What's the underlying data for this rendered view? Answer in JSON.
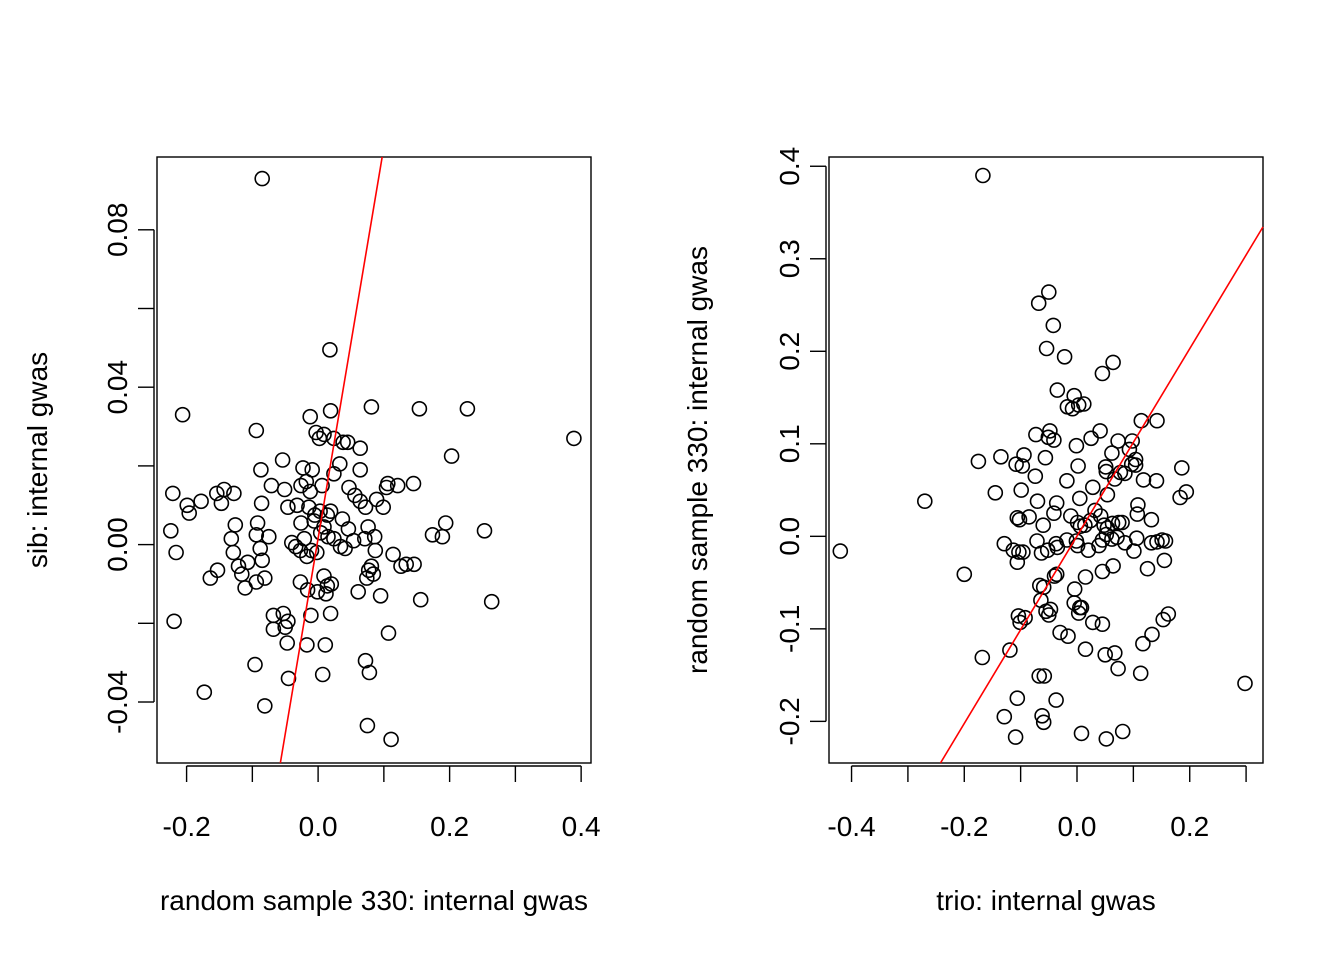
{
  "chart_data": [
    {
      "type": "scatter",
      "xlabel": "random sample 330: internal gwas",
      "ylabel": "sib: internal gwas",
      "xlim": [
        -0.245,
        0.415
      ],
      "ylim": [
        -0.0555,
        0.0985
      ],
      "xticks": [
        -0.2,
        -0.1,
        0.0,
        0.1,
        0.2,
        0.3,
        0.4
      ],
      "xtick_labels": [
        "-0.2",
        "",
        "0.0",
        "",
        "0.2",
        "",
        "0.4"
      ],
      "yticks": [
        -0.04,
        -0.02,
        0.0,
        0.02,
        0.04,
        0.06,
        0.08
      ],
      "ytick_labels": [
        "-0.04",
        "",
        "0.00",
        "",
        "0.04",
        "",
        "0.08"
      ],
      "grid": false,
      "fit_line": {
        "color": "#ff0000",
        "slope": 0.9946,
        "intercept": 0.0016
      },
      "points": [
        [
          -0.085,
          0.093
        ],
        [
          0.018,
          0.0495
        ],
        [
          0.389,
          0.027
        ],
        [
          -0.206,
          0.033
        ],
        [
          -0.094,
          0.029
        ],
        [
          0.081,
          0.035
        ],
        [
          0.154,
          0.0345
        ],
        [
          0.227,
          0.0345
        ],
        [
          0.019,
          0.034
        ],
        [
          -0.012,
          0.0325
        ],
        [
          0.009,
          0.028
        ],
        [
          -0.003,
          0.0285
        ],
        [
          0.002,
          0.027
        ],
        [
          0.024,
          0.027
        ],
        [
          0.038,
          0.026
        ],
        [
          0.045,
          0.026
        ],
        [
          0.064,
          0.0245
        ],
        [
          0.203,
          0.0225
        ],
        [
          -0.087,
          0.019
        ],
        [
          -0.054,
          0.0215
        ],
        [
          -0.023,
          0.0195
        ],
        [
          -0.009,
          0.019
        ],
        [
          0.033,
          0.0205
        ],
        [
          0.064,
          0.019
        ],
        [
          0.024,
          0.018
        ],
        [
          -0.221,
          0.013
        ],
        [
          -0.143,
          0.014
        ],
        [
          -0.128,
          0.013
        ],
        [
          -0.178,
          0.011
        ],
        [
          -0.154,
          0.013
        ],
        [
          -0.071,
          0.015
        ],
        [
          -0.051,
          0.014
        ],
        [
          -0.026,
          0.015
        ],
        [
          -0.018,
          0.016
        ],
        [
          -0.012,
          0.0135
        ],
        [
          0.006,
          0.015
        ],
        [
          0.047,
          0.0145
        ],
        [
          0.056,
          0.0125
        ],
        [
          0.064,
          0.011
        ],
        [
          0.104,
          0.0145
        ],
        [
          0.106,
          0.0155
        ],
        [
          0.121,
          0.015
        ],
        [
          0.145,
          0.0155
        ],
        [
          -0.199,
          0.01
        ],
        [
          -0.196,
          0.008
        ],
        [
          -0.147,
          0.0105
        ],
        [
          -0.086,
          0.0105
        ],
        [
          -0.046,
          0.0095
        ],
        [
          -0.032,
          0.01
        ],
        [
          -0.014,
          0.0095
        ],
        [
          -0.005,
          0.0075
        ],
        [
          0.003,
          0.0085
        ],
        [
          0.014,
          0.0075
        ],
        [
          0.019,
          0.0085
        ],
        [
          0.037,
          0.0065
        ],
        [
          0.072,
          0.0095
        ],
        [
          0.089,
          0.0115
        ],
        [
          0.099,
          0.0095
        ],
        [
          -0.224,
          0.0035
        ],
        [
          -0.126,
          0.005
        ],
        [
          -0.092,
          0.0055
        ],
        [
          -0.026,
          0.0055
        ],
        [
          -0.006,
          0.006
        ],
        [
          0.009,
          0.0045
        ],
        [
          0.046,
          0.004
        ],
        [
          0.076,
          0.0045
        ],
        [
          0.194,
          0.0055
        ],
        [
          0.253,
          0.0035
        ],
        [
          -0.132,
          0.0015
        ],
        [
          -0.094,
          0.0025
        ],
        [
          -0.075,
          0.002
        ],
        [
          -0.04,
          0.0005
        ],
        [
          -0.021,
          0.0015
        ],
        [
          0.004,
          0.003
        ],
        [
          0.015,
          0.002
        ],
        [
          0.024,
          0.0015
        ],
        [
          0.054,
          0.001
        ],
        [
          0.071,
          0.0015
        ],
        [
          0.086,
          0.002
        ],
        [
          0.174,
          0.0025
        ],
        [
          0.189,
          0.002
        ],
        [
          -0.216,
          -0.002
        ],
        [
          -0.129,
          -0.002
        ],
        [
          -0.088,
          -0.001
        ],
        [
          -0.085,
          -0.004
        ],
        [
          -0.034,
          -0.0005
        ],
        [
          -0.027,
          -0.0015
        ],
        [
          -0.017,
          -0.003
        ],
        [
          -0.01,
          -0.0015
        ],
        [
          -0.002,
          -0.002
        ],
        [
          0.034,
          -0.0005
        ],
        [
          0.041,
          -0.001
        ],
        [
          0.087,
          -0.0015
        ],
        [
          0.114,
          -0.0025
        ],
        [
          -0.164,
          -0.0085
        ],
        [
          -0.153,
          -0.0065
        ],
        [
          -0.121,
          -0.0055
        ],
        [
          -0.116,
          -0.0075
        ],
        [
          -0.107,
          -0.0045
        ],
        [
          -0.111,
          -0.011
        ],
        [
          -0.094,
          -0.0095
        ],
        [
          -0.081,
          -0.0085
        ],
        [
          -0.027,
          -0.0095
        ],
        [
          -0.016,
          -0.0115
        ],
        [
          0.012,
          -0.0125
        ],
        [
          0.014,
          -0.0105
        ],
        [
          0.061,
          -0.012
        ],
        [
          0.074,
          -0.0085
        ],
        [
          0.077,
          -0.0065
        ],
        [
          0.081,
          -0.0055
        ],
        [
          0.084,
          -0.0075
        ],
        [
          0.095,
          -0.013
        ],
        [
          0.126,
          -0.0055
        ],
        [
          0.134,
          -0.005
        ],
        [
          0.146,
          -0.005
        ],
        [
          0.156,
          -0.014
        ],
        [
          0.264,
          -0.0145
        ],
        [
          -0.219,
          -0.0195
        ],
        [
          -0.068,
          -0.018
        ],
        [
          -0.068,
          -0.0215
        ],
        [
          -0.053,
          -0.0175
        ],
        [
          -0.05,
          -0.021
        ],
        [
          -0.046,
          -0.0195
        ],
        [
          -0.011,
          -0.018
        ],
        [
          0.019,
          -0.0175
        ],
        [
          0.107,
          -0.0225
        ],
        [
          -0.001,
          -0.012
        ],
        [
          0.009,
          -0.008
        ],
        [
          0.02,
          -0.01
        ],
        [
          -0.047,
          -0.025
        ],
        [
          -0.017,
          -0.0255
        ],
        [
          0.011,
          -0.0255
        ],
        [
          0.072,
          -0.0295
        ],
        [
          0.078,
          -0.0325
        ],
        [
          -0.096,
          -0.0305
        ],
        [
          -0.045,
          -0.034
        ],
        [
          0.007,
          -0.033
        ],
        [
          -0.173,
          -0.0375
        ],
        [
          -0.081,
          -0.041
        ],
        [
          0.075,
          -0.046
        ],
        [
          0.111,
          -0.0495
        ]
      ]
    },
    {
      "type": "scatter",
      "xlabel": "trio: internal gwas",
      "ylabel": "random sample 330: internal gwas",
      "xlim": [
        -0.44,
        0.33
      ],
      "ylim": [
        -0.245,
        0.41
      ],
      "xticks": [
        -0.4,
        -0.3,
        -0.2,
        -0.1,
        0.0,
        0.1,
        0.2,
        0.3
      ],
      "xtick_labels": [
        "-0.4",
        "",
        "-0.2",
        "",
        "0.0",
        "",
        "0.2",
        ""
      ],
      "yticks": [
        -0.2,
        -0.1,
        0.0,
        0.1,
        0.2,
        0.3,
        0.4
      ],
      "ytick_labels": [
        "-0.2",
        "-0.1",
        "0.0",
        "0.1",
        "0.2",
        "0.3",
        "0.4"
      ],
      "grid": false,
      "fit_line": {
        "color": "#ff0000",
        "slope": 1.0127,
        "intercept": 0.0003
      },
      "points": [
        [
          -0.167,
          0.39
        ],
        [
          -0.05,
          0.264
        ],
        [
          -0.068,
          0.252
        ],
        [
          -0.042,
          0.228
        ],
        [
          -0.054,
          0.203
        ],
        [
          -0.022,
          0.194
        ],
        [
          0.064,
          0.188
        ],
        [
          0.045,
          0.176
        ],
        [
          -0.035,
          0.158
        ],
        [
          -0.005,
          0.152
        ],
        [
          -0.008,
          0.138
        ],
        [
          0.003,
          0.142
        ],
        [
          -0.017,
          0.14
        ],
        [
          0.012,
          0.143
        ],
        [
          0.114,
          0.125
        ],
        [
          0.142,
          0.125
        ],
        [
          -0.048,
          0.114
        ],
        [
          -0.051,
          0.107
        ],
        [
          -0.041,
          0.104
        ],
        [
          0.041,
          0.114
        ],
        [
          0.025,
          0.106
        ],
        [
          -0.073,
          0.11
        ],
        [
          -0.056,
          0.085
        ],
        [
          -0.001,
          0.098
        ],
        [
          0.062,
          0.09
        ],
        [
          0.073,
          0.103
        ],
        [
          0.093,
          0.094
        ],
        [
          0.098,
          0.103
        ],
        [
          -0.175,
          0.081
        ],
        [
          -0.135,
          0.086
        ],
        [
          -0.108,
          0.078
        ],
        [
          -0.094,
          0.088
        ],
        [
          -0.097,
          0.076
        ],
        [
          -0.074,
          0.065
        ],
        [
          0.002,
          0.076
        ],
        [
          0.051,
          0.075
        ],
        [
          0.052,
          0.07
        ],
        [
          0.077,
          0.069
        ],
        [
          0.097,
          0.078
        ],
        [
          0.104,
          0.083
        ],
        [
          0.104,
          0.077
        ],
        [
          0.186,
          0.074
        ],
        [
          -0.27,
          0.038
        ],
        [
          -0.145,
          0.047
        ],
        [
          -0.099,
          0.05
        ],
        [
          -0.07,
          0.038
        ],
        [
          -0.036,
          0.036
        ],
        [
          -0.018,
          0.06
        ],
        [
          0.005,
          0.041
        ],
        [
          0.028,
          0.053
        ],
        [
          0.054,
          0.045
        ],
        [
          0.067,
          0.062
        ],
        [
          0.085,
          0.068
        ],
        [
          0.118,
          0.061
        ],
        [
          0.141,
          0.06
        ],
        [
          0.183,
          0.042
        ],
        [
          0.194,
          0.048
        ],
        [
          -0.106,
          0.02
        ],
        [
          -0.102,
          0.018
        ],
        [
          -0.085,
          0.021
        ],
        [
          -0.06,
          0.012
        ],
        [
          -0.041,
          0.025
        ],
        [
          -0.011,
          0.022
        ],
        [
          0.001,
          0.015
        ],
        [
          0.006,
          0.011
        ],
        [
          0.014,
          0.012
        ],
        [
          0.024,
          0.017
        ],
        [
          0.032,
          0.028
        ],
        [
          0.042,
          0.022
        ],
        [
          0.048,
          0.012
        ],
        [
          0.054,
          0.009
        ],
        [
          0.063,
          0.014
        ],
        [
          0.074,
          0.015
        ],
        [
          0.08,
          0.015
        ],
        [
          0.107,
          0.024
        ],
        [
          0.108,
          0.034
        ],
        [
          0.132,
          0.018
        ],
        [
          -0.129,
          -0.008
        ],
        [
          -0.113,
          -0.015
        ],
        [
          -0.103,
          -0.017
        ],
        [
          -0.106,
          -0.028
        ],
        [
          -0.096,
          -0.017
        ],
        [
          -0.071,
          -0.005
        ],
        [
          -0.063,
          -0.018
        ],
        [
          -0.052,
          -0.015
        ],
        [
          -0.037,
          -0.008
        ],
        [
          -0.035,
          -0.012
        ],
        [
          -0.018,
          -0.004
        ],
        [
          -0.001,
          -0.005
        ],
        [
          0.001,
          -0.01
        ],
        [
          0.02,
          -0.015
        ],
        [
          0.039,
          -0.01
        ],
        [
          0.045,
          -0.004
        ],
        [
          0.052,
          0.002
        ],
        [
          0.062,
          -0.003
        ],
        [
          0.071,
          -0.001
        ],
        [
          0.085,
          -0.007
        ],
        [
          0.101,
          -0.016
        ],
        [
          0.106,
          -0.002
        ],
        [
          0.125,
          -0.035
        ],
        [
          0.132,
          -0.007
        ],
        [
          0.142,
          -0.006
        ],
        [
          0.151,
          -0.004
        ],
        [
          0.157,
          -0.005
        ],
        [
          0.155,
          -0.026
        ],
        [
          -0.2,
          -0.041
        ],
        [
          -0.066,
          -0.053
        ],
        [
          -0.059,
          -0.055
        ],
        [
          -0.04,
          -0.043
        ],
        [
          -0.036,
          -0.041
        ],
        [
          -0.004,
          -0.057
        ],
        [
          0.015,
          -0.044
        ],
        [
          0.045,
          -0.038
        ],
        [
          0.064,
          -0.032
        ],
        [
          -0.104,
          -0.086
        ],
        [
          -0.101,
          -0.093
        ],
        [
          -0.092,
          -0.088
        ],
        [
          -0.064,
          -0.069
        ],
        [
          -0.055,
          -0.081
        ],
        [
          -0.05,
          -0.085
        ],
        [
          -0.047,
          -0.079
        ],
        [
          -0.005,
          -0.072
        ],
        [
          0.003,
          -0.083
        ],
        [
          0.005,
          -0.077
        ],
        [
          0.028,
          -0.093
        ],
        [
          0.045,
          -0.095
        ],
        [
          -0.03,
          -0.104
        ],
        [
          -0.016,
          -0.108
        ],
        [
          0.008,
          -0.077
        ],
        [
          0.133,
          -0.106
        ],
        [
          0.153,
          -0.09
        ],
        [
          0.162,
          -0.084
        ],
        [
          -0.168,
          -0.131
        ],
        [
          -0.119,
          -0.123
        ],
        [
          0.015,
          -0.122
        ],
        [
          0.05,
          -0.128
        ],
        [
          0.067,
          -0.126
        ],
        [
          0.117,
          -0.116
        ],
        [
          -0.067,
          -0.151
        ],
        [
          -0.058,
          -0.151
        ],
        [
          0.073,
          -0.143
        ],
        [
          0.113,
          -0.148
        ],
        [
          -0.106,
          -0.175
        ],
        [
          -0.037,
          -0.177
        ],
        [
          -0.129,
          -0.195
        ],
        [
          -0.062,
          -0.194
        ],
        [
          -0.059,
          -0.201
        ],
        [
          -0.109,
          -0.217
        ],
        [
          0.008,
          -0.213
        ],
        [
          0.052,
          -0.219
        ],
        [
          0.081,
          -0.211
        ],
        [
          0.298,
          -0.159
        ],
        [
          -0.42,
          -0.016
        ]
      ]
    }
  ]
}
